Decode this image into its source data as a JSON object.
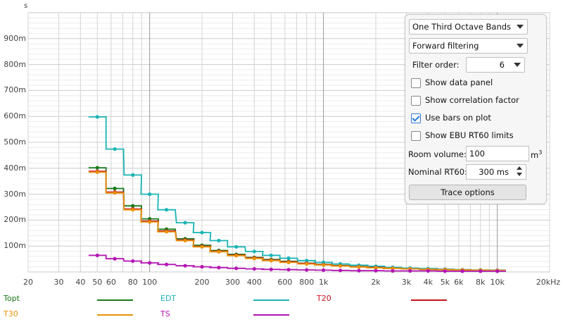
{
  "chart_data": {
    "type": "line",
    "title": "",
    "xlabel": "",
    "ylabel": "s",
    "x_scale": "log",
    "xlim_hz": [
      20,
      20000
    ],
    "ylim_s": [
      0,
      1.0
    ],
    "grid": true,
    "y_tick_labels": [
      "100m",
      "200m",
      "300m",
      "400m",
      "500m",
      "600m",
      "700m",
      "800m",
      "900m"
    ],
    "y_tick_values": [
      0.1,
      0.2,
      0.3,
      0.4,
      0.5,
      0.6,
      0.7,
      0.8,
      0.9
    ],
    "x_tick_labels": [
      "20",
      "30",
      "40",
      "50",
      "60",
      "80",
      "100",
      "200",
      "300",
      "400",
      "600",
      "800",
      "1k",
      "2k",
      "3k",
      "4k",
      "5k",
      "6k",
      "8k",
      "10k",
      "20kHz"
    ],
    "x_tick_values": [
      20,
      30,
      40,
      50,
      60,
      80,
      100,
      200,
      300,
      400,
      600,
      800,
      1000,
      2000,
      3000,
      4000,
      5000,
      6000,
      8000,
      10000,
      20000
    ],
    "bands_hz": [
      50,
      63,
      80,
      100,
      125,
      160,
      200,
      250,
      315,
      400,
      500,
      630,
      800,
      1000,
      1250,
      1600,
      2000,
      2500,
      3150,
      4000,
      5000,
      6300,
      8000,
      10000
    ],
    "series": [
      {
        "name": "Topt",
        "color": "#1a7a1a",
        "values": [
          0.402,
          0.322,
          0.255,
          0.205,
          0.165,
          0.128,
          0.103,
          0.083,
          0.068,
          0.056,
          0.048,
          0.041,
          0.034,
          0.029,
          0.025,
          0.021,
          0.018,
          0.015,
          0.013,
          0.011,
          0.009,
          0.008,
          0.007,
          0.006
        ]
      },
      {
        "name": "EDT",
        "color": "#1ab4b4",
        "values": [
          0.598,
          0.474,
          0.374,
          0.3,
          0.24,
          0.19,
          0.152,
          0.121,
          0.097,
          0.079,
          0.064,
          0.053,
          0.044,
          0.037,
          0.031,
          0.026,
          0.022,
          0.018,
          0.015,
          0.013,
          0.011,
          0.009,
          0.008,
          0.007
        ]
      },
      {
        "name": "T20",
        "color": "#c8141e",
        "values": [
          0.388,
          0.308,
          0.243,
          0.196,
          0.158,
          0.123,
          0.099,
          0.08,
          0.065,
          0.054,
          0.046,
          0.039,
          0.033,
          0.028,
          0.024,
          0.02,
          0.017,
          0.014,
          0.012,
          0.01,
          0.009,
          0.008,
          0.007,
          0.006
        ]
      },
      {
        "name": "T30",
        "color": "#e8920a",
        "values": [
          0.385,
          0.305,
          0.24,
          0.193,
          0.155,
          0.121,
          0.097,
          0.078,
          0.063,
          0.052,
          0.044,
          0.037,
          0.031,
          0.027,
          0.023,
          0.019,
          0.016,
          0.014,
          0.012,
          0.01,
          0.009,
          0.008,
          0.007,
          0.006
        ]
      },
      {
        "name": "TS",
        "color": "#b414b4",
        "values": [
          0.064,
          0.051,
          0.042,
          0.035,
          0.029,
          0.024,
          0.02,
          0.017,
          0.014,
          0.012,
          0.01,
          0.009,
          0.008,
          0.007,
          0.006,
          0.005,
          0.005,
          0.004,
          0.004,
          0.004,
          0.003,
          0.003,
          0.003,
          0.003
        ]
      }
    ],
    "legend_placement": "bottom"
  },
  "legend": [
    {
      "name": "Topt",
      "color": "#1a7a1a"
    },
    {
      "name": "EDT",
      "color": "#1ab4b4"
    },
    {
      "name": "T20",
      "color": "#c8141e"
    },
    {
      "name": "T30",
      "color": "#e8920a"
    },
    {
      "name": "TS",
      "color": "#b414b4"
    }
  ],
  "controls": {
    "band_select": "One Third Octave Bands",
    "filter_select": "Forward filtering",
    "filter_order_label": "Filter order:",
    "filter_order_value": "6",
    "show_data_panel": {
      "label": "Show data panel",
      "checked": false
    },
    "show_correlation": {
      "label": "Show correlation factor",
      "checked": false
    },
    "use_bars": {
      "label": "Use bars on plot",
      "checked": true
    },
    "show_ebu": {
      "label": "Show EBU RT60 limits",
      "checked": false
    },
    "room_volume_label": "Room volume:",
    "room_volume_value": "100",
    "room_volume_unit": "m",
    "room_volume_exp": "3",
    "nominal_rt60_label": "Nominal RT60:",
    "nominal_rt60_value": "300 ms",
    "trace_options_label": "Trace options"
  }
}
